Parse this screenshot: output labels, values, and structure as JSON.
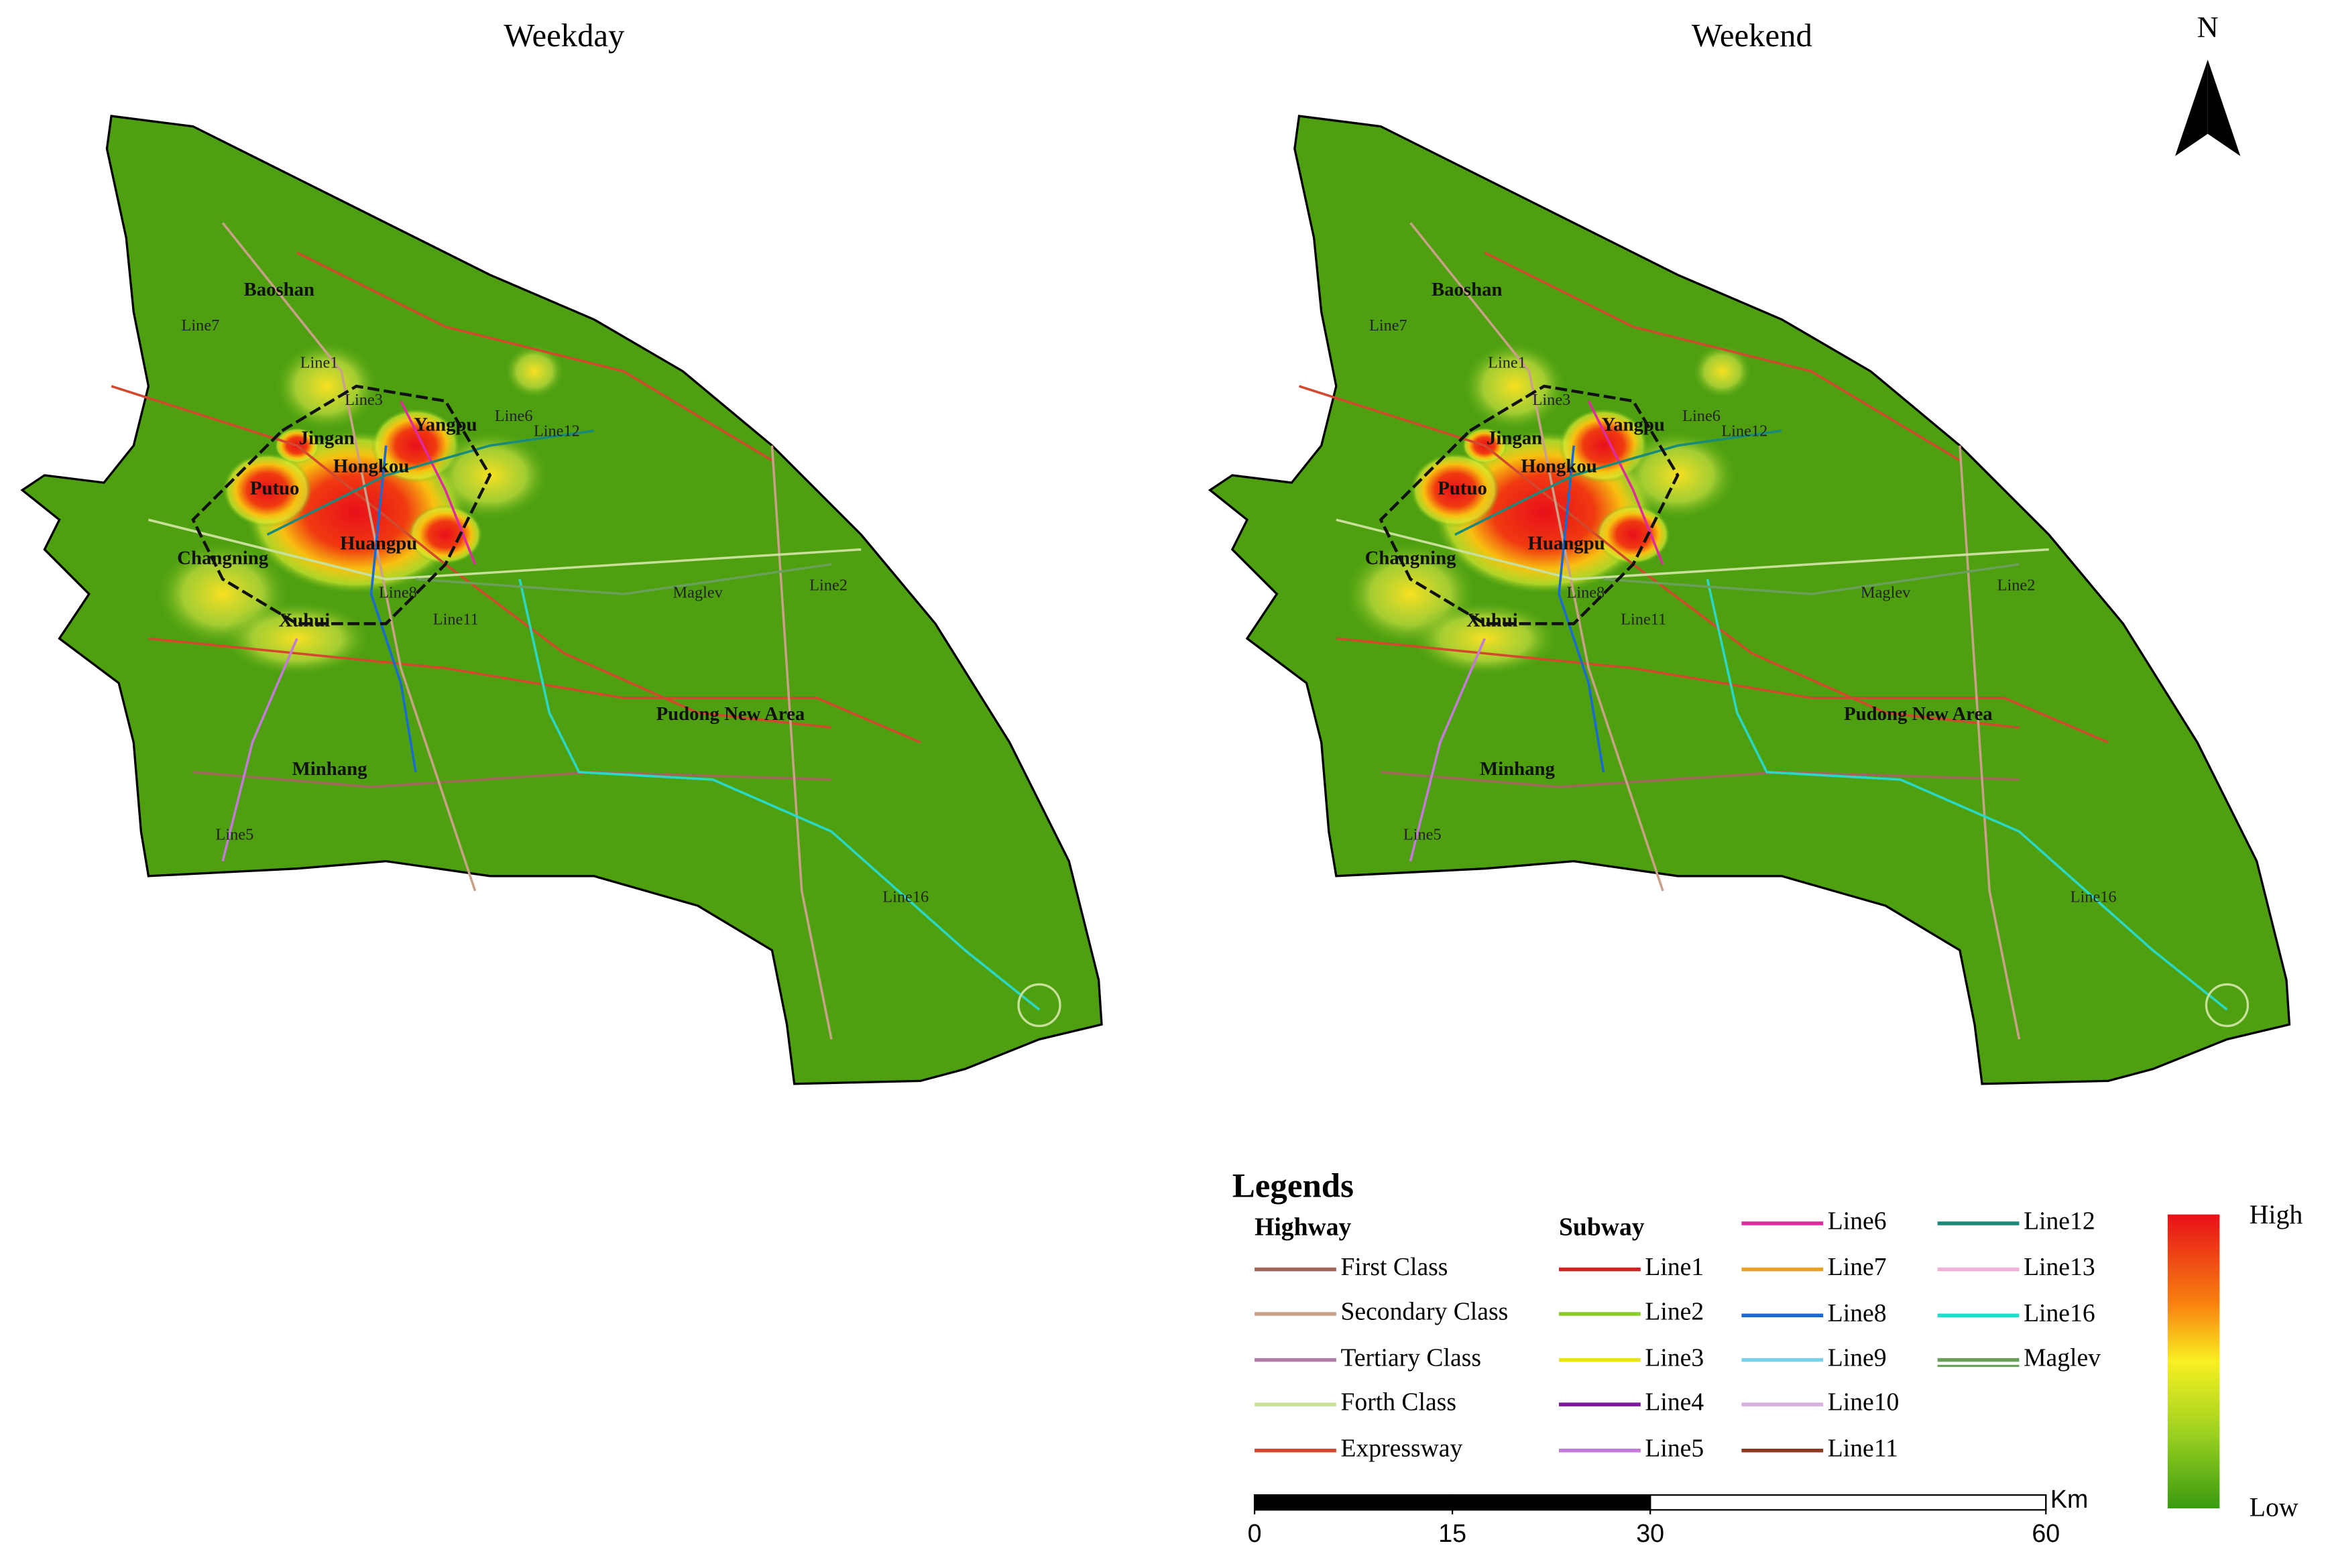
{
  "maps": [
    {
      "title": "Weekday"
    },
    {
      "title": "Weekend"
    }
  ],
  "north_arrow": "N",
  "place_labels": [
    "Baoshan",
    "Jingan",
    "Yangpu",
    "Hongkou",
    "Putuo",
    "Changning",
    "Huangpu",
    "Xuhui",
    "Minhang",
    "Pudong New Area"
  ],
  "line_labels": [
    "Line12",
    "Line6",
    "Line11",
    "Line2",
    "Line16",
    "Line5",
    "Maglev",
    "Line7",
    "Line1",
    "Line3",
    "Line8"
  ],
  "legend": {
    "title": "Legends",
    "highway": {
      "title": "Highway",
      "items": [
        {
          "name": "First Class",
          "color": "#a0665a"
        },
        {
          "name": "Secondary Class",
          "color": "#c9a088"
        },
        {
          "name": "Tertiary Class",
          "color": "#b07aa8"
        },
        {
          "name": "Forth Class",
          "color": "#c8e09a"
        },
        {
          "name": "Expressway",
          "color": "#d2492e"
        }
      ]
    },
    "subway": {
      "title": "Subway",
      "items": [
        {
          "name": "Line1",
          "color": "#d42020"
        },
        {
          "name": "Line2",
          "color": "#8acc2a"
        },
        {
          "name": "Line3",
          "color": "#e8e020"
        },
        {
          "name": "Line4",
          "color": "#7a1a9a"
        },
        {
          "name": "Line5",
          "color": "#c37ad8"
        },
        {
          "name": "Line6",
          "color": "#e02aa0"
        },
        {
          "name": "Line7",
          "color": "#e8a020"
        },
        {
          "name": "Line8",
          "color": "#1a6ad0"
        },
        {
          "name": "Line9",
          "color": "#7ad0e8"
        },
        {
          "name": "Line10",
          "color": "#d8b0e0"
        },
        {
          "name": "Line11",
          "color": "#8a3a20"
        },
        {
          "name": "Line12",
          "color": "#1a8a7a"
        },
        {
          "name": "Line13",
          "color": "#f0b0d8"
        },
        {
          "name": "Line16",
          "color": "#2ad8c8"
        },
        {
          "name": "Maglev",
          "color": "#6aa05a"
        }
      ]
    }
  },
  "color_scale": {
    "high": "High",
    "low": "Low"
  },
  "scale_bar": {
    "unit": "Km",
    "ticks": [
      0,
      15,
      30,
      60
    ]
  }
}
